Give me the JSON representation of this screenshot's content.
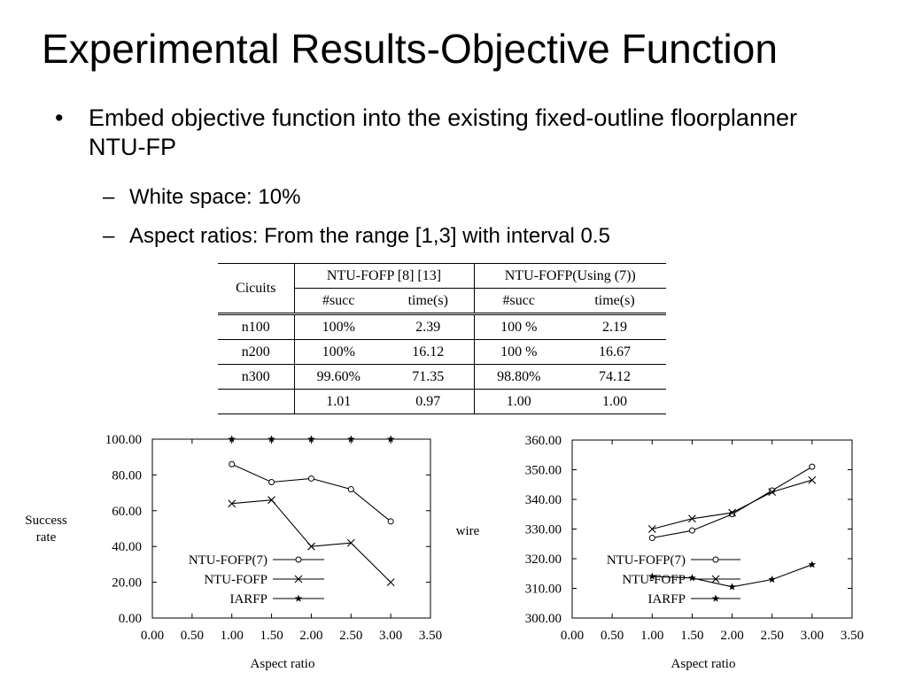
{
  "title": "Experimental Results-Objective Function",
  "bullets": {
    "main": "Embed objective function into the existing fixed-outline floorplanner NTU-FP",
    "subs": [
      "White space: 10%",
      "Aspect ratios: From the range [1,3] with interval 0.5"
    ],
    "bullet_symbol": "•",
    "dash_symbol": "–"
  },
  "table": {
    "corner": "Cicuits",
    "groups": [
      "NTU-FOFP [8] [13]",
      "NTU-FOFP(Using (7))"
    ],
    "subheaders": [
      "#succ",
      "time(s)",
      "#succ",
      "time(s)"
    ],
    "rows": [
      [
        "n100",
        "100%",
        "2.39",
        "100 %",
        "2.19"
      ],
      [
        "n200",
        "100%",
        "16.12",
        "100 %",
        "16.67"
      ],
      [
        "n300",
        "99.60%",
        "71.35",
        "98.80%",
        "74.12"
      ],
      [
        "",
        "1.01",
        "0.97",
        "1.00",
        "1.00"
      ]
    ]
  },
  "chart_data": [
    {
      "type": "line",
      "ylabel": "Success rate",
      "xlabel": "Aspect ratio",
      "xlim": [
        0,
        3.5
      ],
      "ylim": [
        0,
        100
      ],
      "xticks": [
        "0.00",
        "0.50",
        "1.00",
        "1.50",
        "2.00",
        "2.50",
        "3.00",
        "3.50"
      ],
      "yticks": [
        "0.00",
        "20.00",
        "40.00",
        "60.00",
        "80.00",
        "100.00"
      ],
      "legend_position": "bottom-left",
      "series": [
        {
          "name": "NTU-FOFP(7)",
          "marker": "circle",
          "x": [
            1.0,
            1.5,
            2.0,
            2.5,
            3.0
          ],
          "y": [
            86,
            76,
            78,
            72,
            54
          ]
        },
        {
          "name": "NTU-FOFP",
          "marker": "cross",
          "x": [
            1.0,
            1.5,
            2.0,
            2.5,
            3.0
          ],
          "y": [
            64,
            66,
            40,
            42,
            20
          ]
        },
        {
          "name": "IARFP",
          "marker": "star",
          "x": [
            1.0,
            1.5,
            2.0,
            2.5,
            3.0
          ],
          "y": [
            100,
            100,
            100,
            100,
            100
          ]
        }
      ]
    },
    {
      "type": "line",
      "ylabel": "wire",
      "xlabel": "Aspect ratio",
      "xlim": [
        0,
        3.5
      ],
      "ylim": [
        300,
        360
      ],
      "xticks": [
        "0.00",
        "0.50",
        "1.00",
        "1.50",
        "2.00",
        "2.50",
        "3.00",
        "3.50"
      ],
      "yticks": [
        "300.00",
        "310.00",
        "320.00",
        "330.00",
        "340.00",
        "350.00",
        "360.00"
      ],
      "legend_position": "bottom-left",
      "series": [
        {
          "name": "NTU-FOFP(7)",
          "marker": "circle",
          "x": [
            1.0,
            1.5,
            2.0,
            2.5,
            3.0
          ],
          "y": [
            327,
            329.5,
            335,
            343,
            351
          ]
        },
        {
          "name": "NTU-FOFP",
          "marker": "cross",
          "x": [
            1.0,
            1.5,
            2.0,
            2.5,
            3.0
          ],
          "y": [
            330,
            333.5,
            335.5,
            342.5,
            346.5
          ]
        },
        {
          "name": "IARFP",
          "marker": "star",
          "x": [
            1.0,
            1.5,
            2.0,
            2.5,
            3.0
          ],
          "y": [
            314,
            313.5,
            310.5,
            313,
            318
          ]
        }
      ]
    }
  ]
}
